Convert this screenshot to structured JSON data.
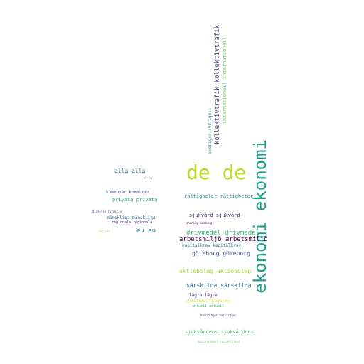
{
  "words": [
    {
      "text": "ekonomi ekonomi",
      "color": "#1fa187"
    },
    {
      "text": "de de",
      "color": "#b5de2b"
    },
    {
      "text": "kollektivtrafik kollektivtrafik",
      "color": "#3e4a89"
    },
    {
      "text": "internationell internationell",
      "color": "#6ccd5a"
    },
    {
      "text": "sveriges sveriges",
      "color": "#26828e"
    },
    {
      "text": "alla alla",
      "color": "#2a788e"
    },
    {
      "text": "ny ny",
      "color": "#2c728e"
    },
    {
      "text": "kommuner kommuner",
      "color": "#3b528b"
    },
    {
      "text": "privata privata",
      "color": "#22a884"
    },
    {
      "text": "direktiv direktiv",
      "color": "#414487"
    },
    {
      "text": "mänskliga mänskliga",
      "color": "#31688e"
    },
    {
      "text": "regionala regionala",
      "color": "#46327e"
    },
    {
      "text": "rör rör",
      "color": "#7ad151"
    },
    {
      "text": "eu eu",
      "color": "#2a788e"
    },
    {
      "text": "rättigheter rättigheter",
      "color": "#26828e"
    },
    {
      "text": "sjukvård sjukvård",
      "color": "#482878"
    },
    {
      "text": "anoning anoning",
      "color": "#440154"
    },
    {
      "text": "drivmedel drivmedel",
      "color": "#35b779"
    },
    {
      "text": "arbetsmiljö arbetsmiljö",
      "color": "#440154"
    },
    {
      "text": "kapitalkrav kapitalkrav",
      "color": "#277f8e"
    },
    {
      "text": "göteborg göteborg",
      "color": "#3e4989"
    },
    {
      "text": "aktiebolag aktiebolag",
      "color": "#a0da39"
    },
    {
      "text": "särskilda särskilda",
      "color": "#2c728e"
    },
    {
      "text": "lägre lägre",
      "color": "#482475"
    },
    {
      "text": "sjukvården sjukvården",
      "color": "#d0e11c"
    },
    {
      "text": "aktuell aktuell",
      "color": "#3fbc73"
    },
    {
      "text": "barnfrågor barnfrågor",
      "color": "#443983"
    },
    {
      "text": "sjukvårdens sjukvårdens",
      "color": "#4ac16d"
    },
    {
      "text": "socialtjänst socialtjänst",
      "color": "#5ec962"
    }
  ]
}
